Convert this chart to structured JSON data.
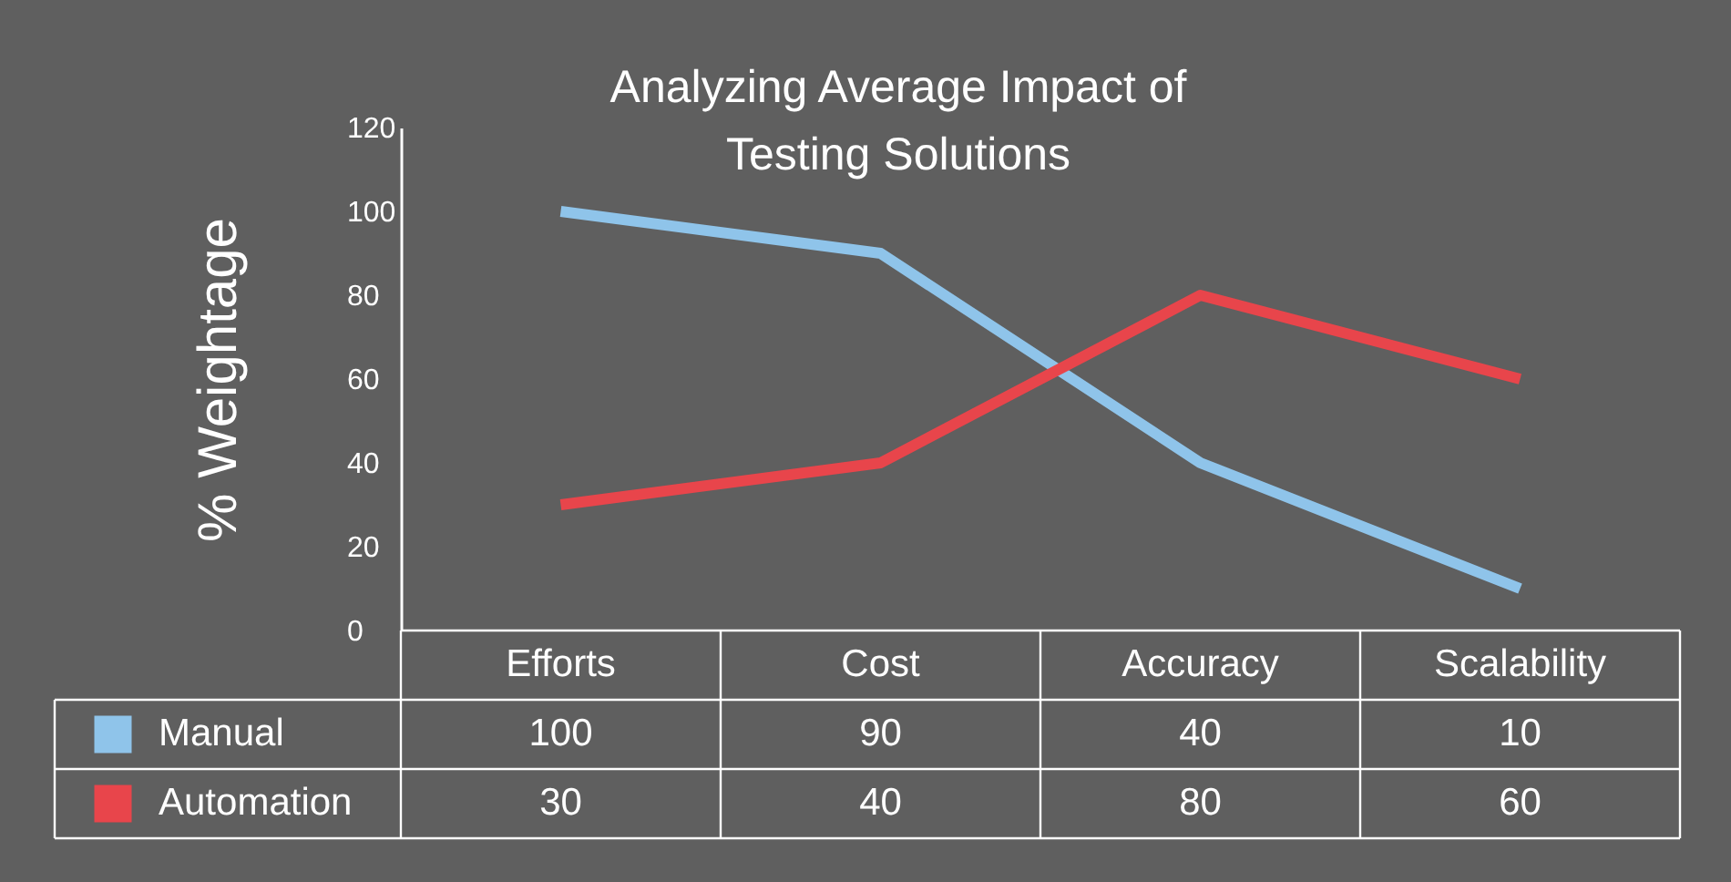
{
  "chart_data": {
    "type": "line",
    "title": "Analyzing Average Impact of Testing Solutions",
    "ylabel": "% Weightage",
    "categories": [
      "Efforts",
      "Cost",
      "Accuracy",
      "Scalability"
    ],
    "series": [
      {
        "name": "Manual",
        "color": "#8fc4ea",
        "values": [
          100,
          90,
          40,
          10
        ]
      },
      {
        "name": "Automation",
        "color": "#e8454b",
        "values": [
          30,
          40,
          80,
          60
        ]
      }
    ],
    "ylim": [
      0,
      120
    ],
    "yticks": [
      0,
      20,
      40,
      60,
      80,
      100,
      120
    ],
    "grid": false,
    "legend": "bottom",
    "data_labels": true,
    "marker": "none",
    "line_style": "solid"
  }
}
